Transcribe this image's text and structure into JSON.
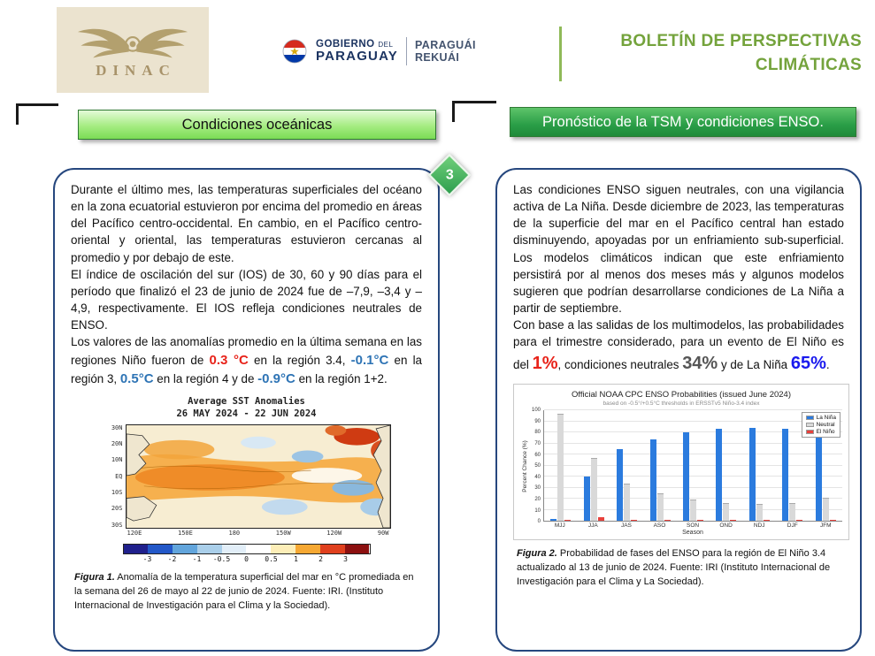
{
  "page_number": "3",
  "colors": {
    "accent_green": "#74a33c",
    "header_left_green": "#8de06a",
    "header_right_green": "#2a9e47",
    "panel_border_navy": "#26477e",
    "anomaly_red": "#e8231a",
    "anomaly_blue": "#2e74b5",
    "la_nina_blue": "#2b7bde",
    "neutral_gray": "#d9d9d9",
    "el_nino_red": "#e8413c",
    "probability_blue": "#1a1aee"
  },
  "header": {
    "dinac_label": "DINAC",
    "gov": {
      "line1_bold": "GOBIERNO",
      "line1_small": "DEL",
      "line2_bold": "PARAGUAY",
      "right_line1": "PARAGUÁI",
      "right_line2": "REKUÁI"
    },
    "bulletin_title_line1": "BOLETÍN DE PERSPECTIVAS",
    "bulletin_title_line2": "CLIMÁTICAS"
  },
  "left_column": {
    "header": "Condiciones oceánicas",
    "paragraph1": "Durante el último mes, las temperaturas superficiales del océano en la zona ecuatorial estuvieron por encima del promedio en áreas del Pacífico centro-occidental. En cambio, en el Pacífico centro-oriental y oriental, las temperaturas estuvieron cercanas al promedio y por debajo de este.",
    "paragraph2": "El índice de oscilación del sur (IOS) de 30, 60 y 90 días para el período que finalizó el 23 de junio de 2024 fue de –7,9, –3,4 y –4,9, respectivamente. El IOS refleja condiciones neutrales de ENSO.",
    "paragraph3": {
      "intro": "Los valores de las anomalías promedio en la última semana en las regiones Niño fueron de ",
      "v1": "0.3 °C",
      "mid1": " en la región 3.4, ",
      "v2": "-0.1°C",
      "mid2": " en la región 3, ",
      "v3": "0.5°C",
      "mid3": " en la región 4 y de ",
      "v4": "-0.9°C",
      "end": " en la región 1+2."
    },
    "figure1": {
      "map_title_line1": "Average SST Anomalies",
      "map_title_line2": "26 MAY 2024 - 22 JUN 2024",
      "lat_labels": [
        "30N",
        "20N",
        "10N",
        "EQ",
        "10S",
        "20S",
        "30S"
      ],
      "lon_labels": [
        "120E",
        "150E",
        "180",
        "150W",
        "120W",
        "90W"
      ],
      "colorbar_labels": [
        "-3",
        "-2",
        "-1",
        "-0.5",
        "0",
        "0.5",
        "1",
        "2",
        "3"
      ],
      "colorbar_colors": [
        "#20208c",
        "#2358c8",
        "#62a5dc",
        "#aacfea",
        "#e2eef8",
        "#ffffff",
        "#fdeeb8",
        "#f6a833",
        "#e0401e",
        "#8c1010"
      ],
      "caption_label": "Figura 1.",
      "caption_text": " Anomalía de la temperatura superficial del mar en °C promediada en la semana del 26 de mayo al 22 de junio de 2024. Fuente: IRI. (Instituto Internacional de Investigación para el Clima y la Sociedad)."
    }
  },
  "right_column": {
    "header": "Pronóstico de la TSM y condiciones ENSO.",
    "paragraph1": "Las condiciones ENSO siguen neutrales, con una vigilancia activa de La Niña. Desde diciembre de 2023, las temperaturas de la superficie del mar en el Pacífico central han estado disminuyendo, apoyadas por un enfriamiento sub-superficial. Los modelos climáticos indican que este enfriamiento persistirá por al menos dos meses más y algunos modelos sugieren que podrían desarrollarse condiciones de La Niña a partir de septiembre.",
    "paragraph2": {
      "intro": "Con base a las salidas de los multimodelos, las probabilidades para el trimestre considerado, para un evento de El Niño es del ",
      "v1": "1%",
      "mid1": ", condiciones neutrales ",
      "v2": "34%",
      "mid2": " y de La Niña ",
      "v3": "65%",
      "end": "."
    },
    "figure2": {
      "caption_label": "Figura 2.",
      "caption_text": " Probabilidad de fases del ENSO para la región de El Niño 3.4 actualizado al 13 de junio de 2024. Fuente: IRI (Instituto Internacional de Investigación para el Clima y La Sociedad).",
      "chart_data": {
        "type": "bar",
        "title": "Official NOAA CPC ENSO Probabilities (issued June 2024)",
        "subtitle": "based on -0.5°/+0.5°C thresholds in ERSSTv5 Niño-3.4 index",
        "xlabel": "Season",
        "ylabel": "Percent Chance (%)",
        "ylim": [
          0,
          100
        ],
        "grid": true,
        "legend_position": "top-right",
        "categories": [
          "MJJ",
          "JJA",
          "JAS",
          "ASO",
          "SON",
          "OND",
          "NDJ",
          "DJF",
          "JFM"
        ],
        "series": [
          {
            "name": "La Niña",
            "color": "#2b7bde",
            "values": [
              2,
              40,
              65,
              74,
              80,
              83,
              84,
              83,
              78
            ]
          },
          {
            "name": "Neutral",
            "color": "#d9d9d9",
            "values": [
              97,
              57,
              34,
              25,
              19,
              16,
              15,
              16,
              21
            ]
          },
          {
            "name": "El Niño",
            "color": "#e8413c",
            "values": [
              1,
              3,
              1,
              1,
              1,
              1,
              1,
              1,
              1
            ]
          }
        ]
      }
    }
  }
}
